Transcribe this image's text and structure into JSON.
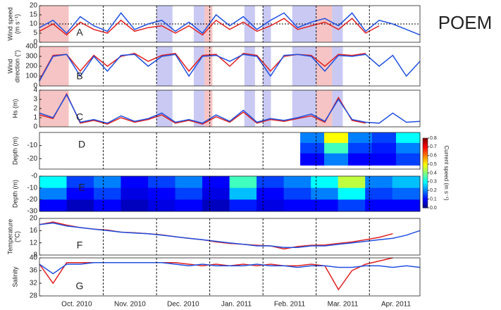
{
  "title": "POEM",
  "x_axis": {
    "categories": [
      "Oct. 2010",
      "Nov. 2010",
      "Dec. 2010",
      "Jan. 2011",
      "Feb. 2011",
      "Mar. 2011",
      "Apr. 2011"
    ],
    "xlim": [
      -0.2,
      6.95
    ]
  },
  "shading": [
    {
      "from": -0.2,
      "to": 0.35,
      "color": "#f6c4c4"
    },
    {
      "from": 2.0,
      "to": 2.3,
      "color": "#c9c9f4"
    },
    {
      "from": 2.7,
      "to": 2.9,
      "color": "#c9c9f4"
    },
    {
      "from": 2.9,
      "to": 3.05,
      "color": "#f6c4c4"
    },
    {
      "from": 3.65,
      "to": 3.85,
      "color": "#c9c9f4"
    },
    {
      "from": 4.0,
      "to": 4.15,
      "color": "#c9c9f4"
    },
    {
      "from": 4.55,
      "to": 5.0,
      "color": "#c9c9f4"
    },
    {
      "from": 5.0,
      "to": 5.3,
      "color": "#f6c4c4"
    },
    {
      "from": 5.3,
      "to": 5.5,
      "color": "#c9c9f4"
    }
  ],
  "chart_data": [
    {
      "type": "line",
      "label": "A",
      "ylabel": [
        "Wind speed",
        "(m s⁻¹)"
      ],
      "ylim": [
        0,
        20
      ],
      "yticks": [
        0,
        5,
        10,
        15,
        20
      ],
      "reference_line": 10,
      "shaded": true,
      "series": [
        {
          "color": "#e02020",
          "values": [
            6,
            10,
            4,
            11,
            7,
            5,
            12,
            6,
            8,
            9,
            5,
            9,
            4,
            12,
            7,
            11,
            6,
            9,
            13,
            7,
            9,
            11,
            7,
            13,
            5,
            9,
            null,
            null,
            null
          ]
        },
        {
          "color": "#2050e0",
          "values": [
            8,
            12,
            5,
            14,
            9,
            6,
            16,
            7,
            10,
            12,
            6,
            11,
            5,
            15,
            9,
            14,
            7,
            12,
            16,
            8,
            11,
            13,
            9,
            16,
            6,
            12,
            10,
            7,
            4
          ]
        }
      ]
    },
    {
      "type": "line",
      "label": "B",
      "ylabel": [
        "Wind",
        "direction (°)"
      ],
      "ylim": [
        0,
        400
      ],
      "yticks": [
        0,
        100,
        200,
        300,
        400
      ],
      "shaded": true,
      "series": [
        {
          "color": "#e02020",
          "values": [
            60,
            310,
            320,
            150,
            310,
            200,
            300,
            330,
            250,
            310,
            330,
            150,
            310,
            320,
            200,
            330,
            310,
            150,
            300,
            320,
            310,
            200,
            320,
            310,
            330,
            null,
            null,
            null,
            null
          ]
        },
        {
          "color": "#2050e0",
          "values": [
            50,
            300,
            320,
            100,
            300,
            150,
            310,
            320,
            200,
            300,
            320,
            100,
            300,
            310,
            250,
            320,
            300,
            100,
            310,
            320,
            300,
            150,
            310,
            300,
            320,
            200,
            310,
            100,
            250
          ]
        }
      ]
    },
    {
      "type": "line",
      "label": "C",
      "ylabel": [
        "Hs (m)"
      ],
      "ylim": [
        0,
        4
      ],
      "yticks": [
        0,
        1,
        2,
        3,
        4
      ],
      "shaded": true,
      "series": [
        {
          "color": "#e02020",
          "values": [
            1.3,
            0.9,
            3.6,
            0.4,
            0.7,
            0.3,
            1.0,
            0.5,
            0.8,
            1.3,
            0.4,
            0.7,
            0.3,
            1.1,
            0.5,
            1.6,
            0.4,
            0.8,
            0.6,
            0.9,
            1.2,
            0.5,
            3.2,
            0.7,
            0.4,
            null,
            null,
            null,
            null
          ]
        },
        {
          "color": "#2050e0",
          "values": [
            1.5,
            1,
            3.5,
            0.5,
            0.8,
            0.4,
            1.2,
            0.6,
            0.9,
            1.5,
            0.5,
            0.8,
            0.4,
            1.3,
            0.6,
            1.8,
            0.5,
            0.9,
            0.7,
            1.0,
            1.4,
            0.6,
            3,
            0.8,
            0.5,
            0.4,
            1.5,
            0.5,
            0.6
          ]
        }
      ]
    },
    {
      "type": "heatmap",
      "label": "D",
      "ylabel": [
        "Depth (m)"
      ],
      "ylim": [
        -28,
        0
      ],
      "yticks": [
        -10,
        -20
      ],
      "x_edges": [
        4.7,
        5.15,
        5.6,
        6.05,
        6.5,
        6.95
      ],
      "depth_edges": [
        0,
        -8,
        -16,
        -25
      ],
      "z": [
        [
          0.2,
          0.5,
          0.2,
          0.15,
          0.3
        ],
        [
          0.15,
          0.35,
          0.15,
          0.12,
          0.2
        ],
        [
          0.1,
          0.2,
          0.1,
          0.1,
          0.15
        ]
      ]
    },
    {
      "type": "heatmap",
      "label": "E",
      "ylabel": [
        "Depth (m)"
      ],
      "ylim": [
        -30,
        0
      ],
      "yticks": [
        {
          "value": 0,
          "label": "-0"
        },
        -10,
        -20,
        -30
      ],
      "x_edges": [
        -0.2,
        0.31,
        0.82,
        1.33,
        1.84,
        2.35,
        2.86,
        3.37,
        3.88,
        4.39,
        4.9,
        5.41,
        5.92,
        6.43,
        6.95
      ],
      "depth_edges": [
        0,
        -10,
        -20,
        -30
      ],
      "z": [
        [
          0.3,
          0.15,
          0.2,
          0.1,
          0.15,
          0.2,
          0.1,
          0.35,
          0.15,
          0.2,
          0.3,
          0.45,
          0.2,
          0.25
        ],
        [
          0.2,
          0.1,
          0.15,
          0.08,
          0.1,
          0.15,
          0.08,
          0.25,
          0.1,
          0.15,
          0.2,
          0.3,
          0.15,
          0.18
        ],
        [
          0.1,
          0.05,
          0.1,
          0.05,
          0.08,
          0.1,
          0.05,
          0.12,
          0.08,
          0.1,
          0.1,
          0.15,
          0.1,
          0.1
        ]
      ],
      "colorbar": {
        "label": "Current speed (m s⁻¹)",
        "clim": [
          0,
          0.8
        ],
        "ticks": [
          {
            "value": 0,
            "label": "0.0"
          },
          0.1,
          0.2,
          0.3,
          0.4,
          0.5,
          0.6,
          0.7,
          0.8
        ]
      }
    },
    {
      "type": "line",
      "label": "F",
      "ylabel": [
        "Temperature",
        "(°C)"
      ],
      "ylim": [
        8,
        20
      ],
      "yticks": [
        8,
        12,
        16,
        20
      ],
      "series": [
        {
          "color": "#e02020",
          "values": [
            18,
            18.8,
            17.8,
            17,
            16.5,
            16.2,
            15.5,
            15.3,
            15,
            14.6,
            14,
            13.5,
            13,
            12.3,
            11.8,
            11.5,
            11.2,
            11,
            10,
            10.8,
            11.2,
            11.3,
            11.8,
            12.3,
            13,
            13.8,
            15,
            null,
            null
          ]
        },
        {
          "color": "#2050e0",
          "values": [
            18,
            18.5,
            17.5,
            17,
            16.5,
            16,
            15.5,
            15.2,
            15,
            14.5,
            14,
            13.5,
            13,
            12.5,
            12,
            11.5,
            11,
            11,
            10.5,
            10.5,
            11,
            11,
            11.5,
            12,
            12.5,
            13,
            13.5,
            14.5,
            16
          ]
        }
      ]
    },
    {
      "type": "line",
      "label": "G",
      "ylabel": [
        "Salinity"
      ],
      "ylim": [
        28,
        40
      ],
      "yticks": [
        28,
        32,
        36,
        40
      ],
      "series": [
        {
          "color": "#e02020",
          "values": [
            38,
            32,
            38.5,
            38.5,
            38.5,
            38.5,
            38.5,
            38.5,
            38.5,
            38.5,
            38.5,
            38,
            37.5,
            38,
            37.5,
            38,
            37.5,
            38,
            37.5,
            37.5,
            38,
            37.5,
            30,
            36,
            38,
            39,
            40,
            null,
            null
          ]
        },
        {
          "color": "#2050e0",
          "values": [
            38,
            35,
            38,
            38,
            38.5,
            38.5,
            38.5,
            38.5,
            38.5,
            38.5,
            38,
            37.5,
            38,
            37.5,
            37.5,
            37.5,
            38,
            37.5,
            37.5,
            37,
            37.5,
            37.5,
            37,
            37,
            37.5,
            37.5,
            37,
            37.5,
            37
          ]
        }
      ]
    }
  ]
}
